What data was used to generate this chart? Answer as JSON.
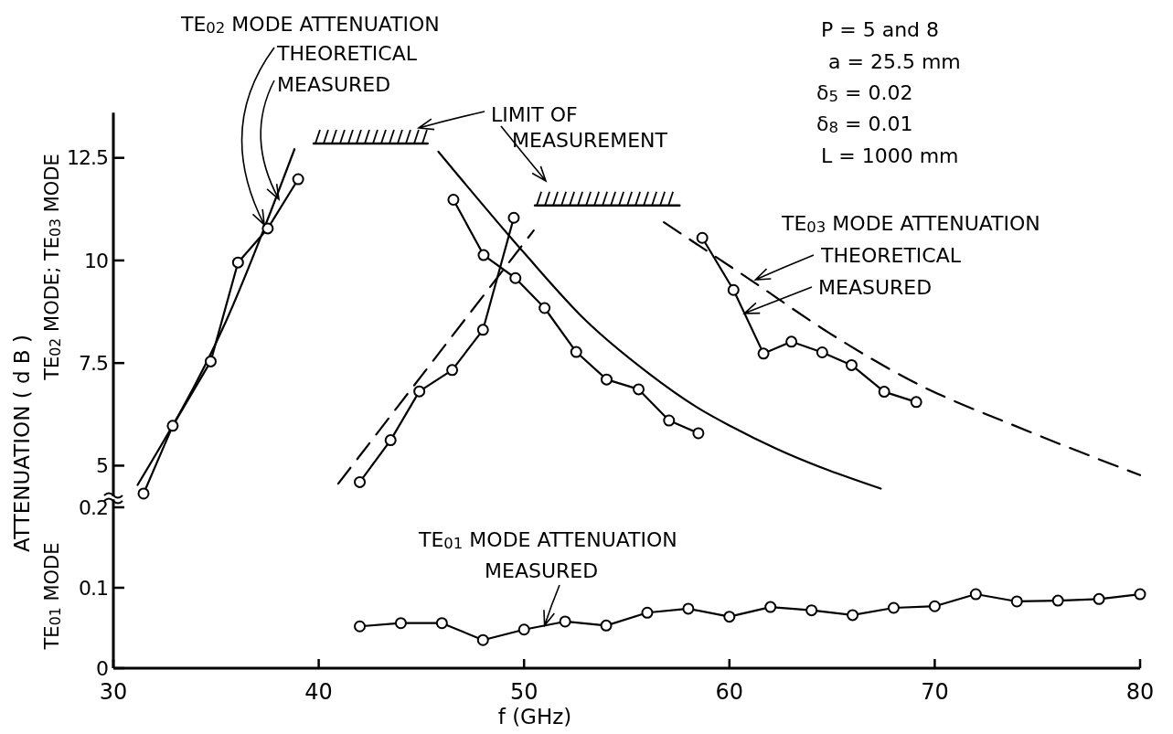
{
  "chart_data": [
    {
      "type": "line",
      "ylabel": "TE$_{02}$ MODE; TE$_{03}$ MODE",
      "xlim": [
        30,
        80
      ],
      "ylim": [
        4.25,
        13.6
      ],
      "yticks": [
        5,
        7.5,
        10,
        12.5
      ],
      "tick_labels": "y",
      "annotations": [
        "ATTENUATION ( d B )",
        "TE$_{02}$ MODE ATTENUATION",
        {
          "text": "THEORETICAL",
          "x": 37.35,
          "y": 10.87
        },
        {
          "text": "MEASURED",
          "x": 38.06,
          "y": 11.49
        },
        "LIMIT OF MEASUREMENT",
        "P = 5 and 8",
        "a = 25.5 mm",
        "δ$_{5}$ = 0.02",
        "δ$_{8}$ = 0.01",
        "L = 1000 mm",
        "TE$_{03}$ MODE ATTENUATION",
        {
          "text": "THEORETICAL",
          "x": 61.27,
          "y": 9.53
        },
        {
          "text": "MEASURED",
          "x": 60.73,
          "y": 8.71
        }
      ],
      "series": [
        {
          "color": "#000000",
          "marker": "none",
          "line_style": "solid",
          "x": [
            31.18,
            35.45,
            38.82
          ],
          "values": [
            4.53,
            8.48,
            12.71
          ]
        },
        {
          "color": "#000000",
          "marker": "circle",
          "line_style": "solid",
          "x": [
            31.47,
            32.89,
            34.74,
            36.07,
            37.52,
            39.0
          ],
          "values": [
            4.32,
            5.97,
            7.54,
            9.95,
            10.78,
            11.98
          ]
        },
        {
          "color": "#000000",
          "marker": "none",
          "line_style": "dashed",
          "x": [
            40.95,
            50.47
          ],
          "values": [
            4.56,
            10.73
          ]
        },
        {
          "color": "#000000",
          "marker": "circle",
          "line_style": "solid",
          "x": [
            42.0,
            43.5,
            44.9,
            46.5,
            48.0,
            49.5
          ],
          "values": [
            4.6,
            5.62,
            6.81,
            7.33,
            8.31,
            11.04
          ]
        },
        {
          "color": "#000000",
          "marker": "none",
          "line_style": "solid",
          "x": [
            45.83,
            50.01,
            52.98,
            55.96,
            58.46,
            60.11,
            62.25,
            67.37
          ],
          "values": [
            12.65,
            10.18,
            8.55,
            7.29,
            6.41,
            5.95,
            5.42,
            4.44
          ]
        },
        {
          "color": "#000000",
          "marker": "circle",
          "line_style": "solid",
          "x": [
            46.56,
            48.03,
            49.58,
            51.0,
            52.54,
            54.02,
            55.58,
            57.06,
            58.49
          ],
          "values": [
            11.48,
            10.13,
            9.57,
            8.84,
            7.77,
            7.1,
            6.86,
            6.1,
            5.79
          ]
        },
        {
          "color": "#000000",
          "marker": "none",
          "line_style": "dashed",
          "x": [
            56.81,
            61.1,
            64.9,
            68.85,
            74.6,
            80.0
          ],
          "values": [
            10.93,
            9.5,
            8.22,
            7.07,
            5.83,
            4.77
          ]
        },
        {
          "color": "#000000",
          "marker": "circle",
          "line_style": "solid",
          "x": [
            58.68,
            60.2,
            61.66,
            63.02,
            64.52,
            65.95,
            67.54,
            69.1
          ],
          "values": [
            10.55,
            9.28,
            7.73,
            8.02,
            7.76,
            7.45,
            6.8,
            6.55
          ]
        },
        {
          "color": "#000000",
          "marker": "none",
          "line_style": "solid",
          "x": [
            39.75,
            45.3
          ],
          "values": [
            12.85,
            12.85
          ]
        },
        {
          "color": "#000000",
          "marker": "none",
          "line_style": "solid",
          "x": [
            50.53,
            57.57
          ],
          "values": [
            11.34,
            11.34
          ]
        }
      ]
    },
    {
      "type": "line",
      "ylabel": "TE$_{01}$ MODE",
      "xlabel": "f (GHz)",
      "xlim": [
        30,
        80
      ],
      "xticks": [
        30,
        40,
        50,
        60,
        70,
        80
      ],
      "ylim": [
        0,
        0.21
      ],
      "yticks": [
        0,
        0.1,
        0.2
      ],
      "annotations": [
        "TE$_{01}$ MODE ATTENUATION",
        {
          "text": "MEASURED",
          "x": 51.0,
          "y": 0.053
        }
      ],
      "series": [
        {
          "color": "#000000",
          "marker": "circle",
          "line_style": "solid",
          "x": [
            42,
            44,
            46,
            48,
            50,
            52,
            54,
            56,
            58,
            60,
            62,
            64,
            66,
            68,
            70,
            72,
            74,
            76,
            78,
            80
          ],
          "values": [
            0.052,
            0.056,
            0.056,
            0.035,
            0.048,
            0.058,
            0.053,
            0.069,
            0.074,
            0.064,
            0.076,
            0.072,
            0.066,
            0.075,
            0.077,
            0.092,
            0.083,
            0.084,
            0.086,
            0.092
          ]
        }
      ]
    }
  ]
}
